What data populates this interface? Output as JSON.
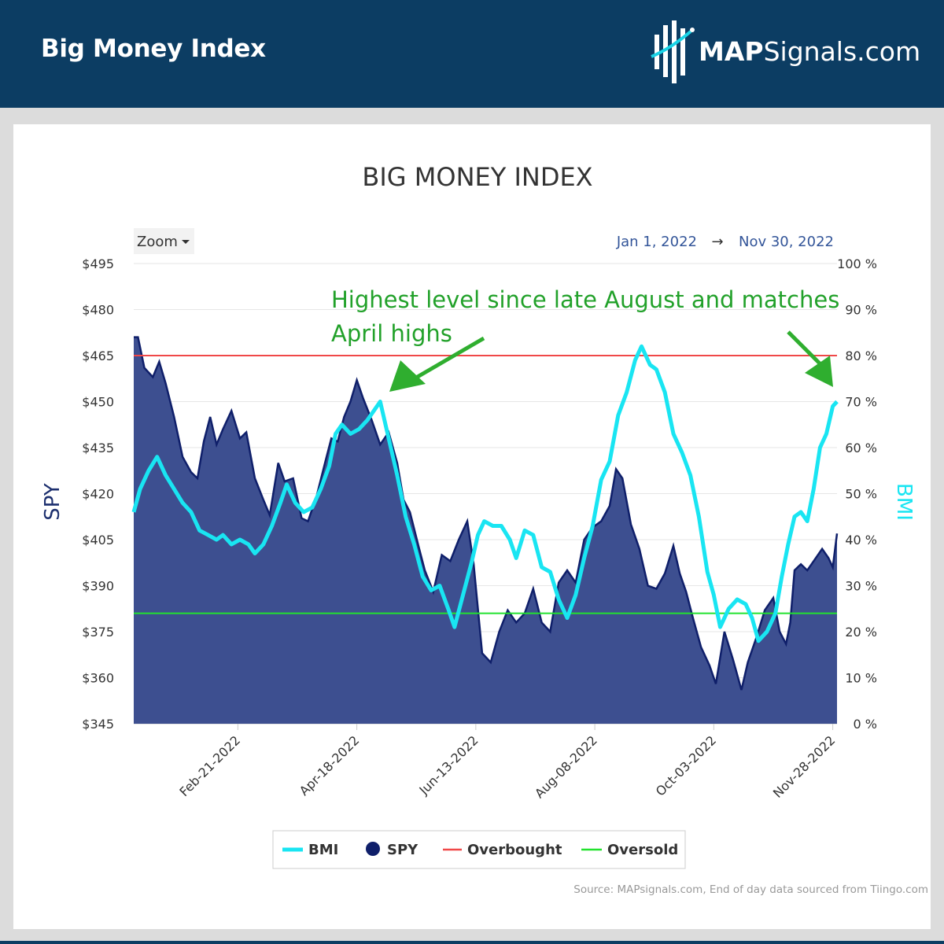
{
  "header": {
    "title": "Big Money Index",
    "brand_bold": "MAP",
    "brand_rest": "Signals.com"
  },
  "controls": {
    "zoom_label": "Zoom",
    "range_start": "Jan 1, 2022",
    "range_arrow": "→",
    "range_end": "Nov 30, 2022"
  },
  "source": "Source: MAPsignals.com, End of day data sourced from Tiingo.com",
  "chart_data": {
    "type": "area",
    "title": "BIG MONEY INDEX",
    "ylabel_left": "SPY",
    "ylabel_right": "BMI",
    "ylim_left": [
      345,
      495
    ],
    "ylim_right": [
      0,
      100
    ],
    "yticks_left": [
      "$495",
      "$480",
      "$465",
      "$450",
      "$435",
      "$420",
      "$405",
      "$390",
      "$375",
      "$360",
      "$345"
    ],
    "yticks_right": [
      "100 %",
      "90 %",
      "80 %",
      "70 %",
      "60 %",
      "50 %",
      "40 %",
      "30 %",
      "20 %",
      "10 %",
      "0 %"
    ],
    "xlim": [
      "2022-01-03",
      "2022-11-30"
    ],
    "xticks": [
      "Feb-21-2022",
      "Apr-18-2022",
      "Jun-13-2022",
      "Aug-08-2022",
      "Oct-03-2022",
      "Nov-28-2022"
    ],
    "xtick_dates": [
      "2022-02-21",
      "2022-04-18",
      "2022-06-13",
      "2022-08-08",
      "2022-10-03",
      "2022-11-28"
    ],
    "grid": true,
    "legend": [
      "BMI",
      "SPY",
      "Overbought",
      "Oversold"
    ],
    "legend_position": "bottom",
    "colors": {
      "bmi": "#19e5f2",
      "spy": "#3d4f90",
      "spy_line": "#0f1f6a",
      "overbought": "#f04848",
      "oversold": "#22e22e",
      "annotation": "#22a12a"
    },
    "lines": {
      "overbought": 80,
      "oversold": 24
    },
    "annotation": {
      "text_line1": "Highest level since late August and matches",
      "text_line2": "April highs"
    },
    "series": [
      {
        "name": "SPY",
        "axis": "left",
        "points": [
          [
            "2022-01-03",
            471
          ],
          [
            "2022-01-05",
            471
          ],
          [
            "2022-01-08",
            461
          ],
          [
            "2022-01-12",
            458
          ],
          [
            "2022-01-15",
            463
          ],
          [
            "2022-01-18",
            456
          ],
          [
            "2022-01-22",
            445
          ],
          [
            "2022-01-26",
            432
          ],
          [
            "2022-01-30",
            427
          ],
          [
            "2022-02-02",
            425
          ],
          [
            "2022-02-05",
            437
          ],
          [
            "2022-02-08",
            445
          ],
          [
            "2022-02-11",
            436
          ],
          [
            "2022-02-14",
            441
          ],
          [
            "2022-02-18",
            447
          ],
          [
            "2022-02-22",
            438
          ],
          [
            "2022-02-25",
            440
          ],
          [
            "2022-03-01",
            425
          ],
          [
            "2022-03-05",
            418
          ],
          [
            "2022-03-08",
            413
          ],
          [
            "2022-03-12",
            430
          ],
          [
            "2022-03-15",
            424
          ],
          [
            "2022-03-19",
            425
          ],
          [
            "2022-03-23",
            412
          ],
          [
            "2022-03-26",
            411
          ],
          [
            "2022-03-30",
            419
          ],
          [
            "2022-04-03",
            430
          ],
          [
            "2022-04-06",
            438
          ],
          [
            "2022-04-09",
            437
          ],
          [
            "2022-04-12",
            445
          ],
          [
            "2022-04-15",
            450
          ],
          [
            "2022-04-18",
            457
          ],
          [
            "2022-04-21",
            451
          ],
          [
            "2022-04-25",
            444
          ],
          [
            "2022-04-29",
            436
          ],
          [
            "2022-05-03",
            440
          ],
          [
            "2022-05-07",
            430
          ],
          [
            "2022-05-10",
            418
          ],
          [
            "2022-05-13",
            414
          ],
          [
            "2022-05-17",
            403
          ],
          [
            "2022-05-20",
            395
          ],
          [
            "2022-05-24",
            388
          ],
          [
            "2022-05-28",
            400
          ],
          [
            "2022-06-01",
            398
          ],
          [
            "2022-06-05",
            405
          ],
          [
            "2022-06-09",
            411
          ],
          [
            "2022-06-12",
            397
          ],
          [
            "2022-06-16",
            368
          ],
          [
            "2022-06-20",
            365
          ],
          [
            "2022-06-24",
            375
          ],
          [
            "2022-06-28",
            382
          ],
          [
            "2022-07-02",
            378
          ],
          [
            "2022-07-06",
            381
          ],
          [
            "2022-07-10",
            389
          ],
          [
            "2022-07-14",
            378
          ],
          [
            "2022-07-18",
            375
          ],
          [
            "2022-07-22",
            391
          ],
          [
            "2022-07-26",
            395
          ],
          [
            "2022-07-30",
            391
          ],
          [
            "2022-08-03",
            405
          ],
          [
            "2022-08-07",
            409
          ],
          [
            "2022-08-11",
            411
          ],
          [
            "2022-08-15",
            416
          ],
          [
            "2022-08-18",
            428
          ],
          [
            "2022-08-21",
            425
          ],
          [
            "2022-08-25",
            410
          ],
          [
            "2022-08-29",
            402
          ],
          [
            "2022-09-02",
            390
          ],
          [
            "2022-09-06",
            389
          ],
          [
            "2022-09-10",
            394
          ],
          [
            "2022-09-14",
            403
          ],
          [
            "2022-09-17",
            394
          ],
          [
            "2022-09-20",
            388
          ],
          [
            "2022-09-23",
            380
          ],
          [
            "2022-09-27",
            370
          ],
          [
            "2022-10-01",
            364
          ],
          [
            "2022-10-04",
            358
          ],
          [
            "2022-10-08",
            375
          ],
          [
            "2022-10-12",
            366
          ],
          [
            "2022-10-16",
            356
          ],
          [
            "2022-10-19",
            365
          ],
          [
            "2022-10-23",
            373
          ],
          [
            "2022-10-27",
            382
          ],
          [
            "2022-10-31",
            386
          ],
          [
            "2022-11-03",
            375
          ],
          [
            "2022-11-06",
            371
          ],
          [
            "2022-11-08",
            378
          ],
          [
            "2022-11-10",
            395
          ],
          [
            "2022-11-13",
            397
          ],
          [
            "2022-11-16",
            395
          ],
          [
            "2022-11-19",
            398
          ],
          [
            "2022-11-23",
            402
          ],
          [
            "2022-11-26",
            399
          ],
          [
            "2022-11-28",
            396
          ],
          [
            "2022-11-30",
            407
          ]
        ]
      },
      {
        "name": "BMI",
        "axis": "right",
        "points": [
          [
            "2022-01-03",
            46
          ],
          [
            "2022-01-06",
            51
          ],
          [
            "2022-01-10",
            55
          ],
          [
            "2022-01-14",
            58
          ],
          [
            "2022-01-18",
            54
          ],
          [
            "2022-01-22",
            51
          ],
          [
            "2022-01-26",
            48
          ],
          [
            "2022-01-30",
            46
          ],
          [
            "2022-02-03",
            42
          ],
          [
            "2022-02-07",
            41
          ],
          [
            "2022-02-11",
            40
          ],
          [
            "2022-02-14",
            41
          ],
          [
            "2022-02-18",
            39
          ],
          [
            "2022-02-22",
            40
          ],
          [
            "2022-02-26",
            39
          ],
          [
            "2022-03-01",
            37
          ],
          [
            "2022-03-05",
            39
          ],
          [
            "2022-03-09",
            43
          ],
          [
            "2022-03-13",
            48
          ],
          [
            "2022-03-16",
            52
          ],
          [
            "2022-03-20",
            48
          ],
          [
            "2022-03-24",
            46
          ],
          [
            "2022-03-28",
            47
          ],
          [
            "2022-04-01",
            51
          ],
          [
            "2022-04-05",
            56
          ],
          [
            "2022-04-08",
            63
          ],
          [
            "2022-04-11",
            65
          ],
          [
            "2022-04-15",
            63
          ],
          [
            "2022-04-19",
            64
          ],
          [
            "2022-04-23",
            66
          ],
          [
            "2022-04-26",
            68
          ],
          [
            "2022-04-29",
            70
          ],
          [
            "2022-05-03",
            62
          ],
          [
            "2022-05-07",
            54
          ],
          [
            "2022-05-11",
            45
          ],
          [
            "2022-05-15",
            39
          ],
          [
            "2022-05-19",
            32
          ],
          [
            "2022-05-23",
            29
          ],
          [
            "2022-05-27",
            30
          ],
          [
            "2022-05-31",
            25
          ],
          [
            "2022-06-03",
            21
          ],
          [
            "2022-06-07",
            28
          ],
          [
            "2022-06-11",
            35
          ],
          [
            "2022-06-14",
            41
          ],
          [
            "2022-06-17",
            44
          ],
          [
            "2022-06-21",
            43
          ],
          [
            "2022-06-25",
            43
          ],
          [
            "2022-06-29",
            40
          ],
          [
            "2022-07-02",
            36
          ],
          [
            "2022-07-06",
            42
          ],
          [
            "2022-07-10",
            41
          ],
          [
            "2022-07-14",
            34
          ],
          [
            "2022-07-18",
            33
          ],
          [
            "2022-07-22",
            27
          ],
          [
            "2022-07-26",
            23
          ],
          [
            "2022-07-30",
            28
          ],
          [
            "2022-08-03",
            36
          ],
          [
            "2022-08-07",
            43
          ],
          [
            "2022-08-11",
            53
          ],
          [
            "2022-08-15",
            57
          ],
          [
            "2022-08-19",
            67
          ],
          [
            "2022-08-23",
            72
          ],
          [
            "2022-08-27",
            79
          ],
          [
            "2022-08-30",
            82
          ],
          [
            "2022-09-03",
            78
          ],
          [
            "2022-09-06",
            77
          ],
          [
            "2022-09-10",
            72
          ],
          [
            "2022-09-14",
            63
          ],
          [
            "2022-09-18",
            59
          ],
          [
            "2022-09-22",
            54
          ],
          [
            "2022-09-26",
            45
          ],
          [
            "2022-09-30",
            33
          ],
          [
            "2022-10-03",
            28
          ],
          [
            "2022-10-06",
            21
          ],
          [
            "2022-10-10",
            25
          ],
          [
            "2022-10-14",
            27
          ],
          [
            "2022-10-18",
            26
          ],
          [
            "2022-10-21",
            23
          ],
          [
            "2022-10-24",
            18
          ],
          [
            "2022-10-28",
            20
          ],
          [
            "2022-11-01",
            24
          ],
          [
            "2022-11-04",
            32
          ],
          [
            "2022-11-07",
            39
          ],
          [
            "2022-11-10",
            45
          ],
          [
            "2022-11-13",
            46
          ],
          [
            "2022-11-16",
            44
          ],
          [
            "2022-11-19",
            51
          ],
          [
            "2022-11-22",
            60
          ],
          [
            "2022-11-25",
            63
          ],
          [
            "2022-11-28",
            69
          ],
          [
            "2022-11-30",
            70
          ]
        ]
      }
    ]
  }
}
